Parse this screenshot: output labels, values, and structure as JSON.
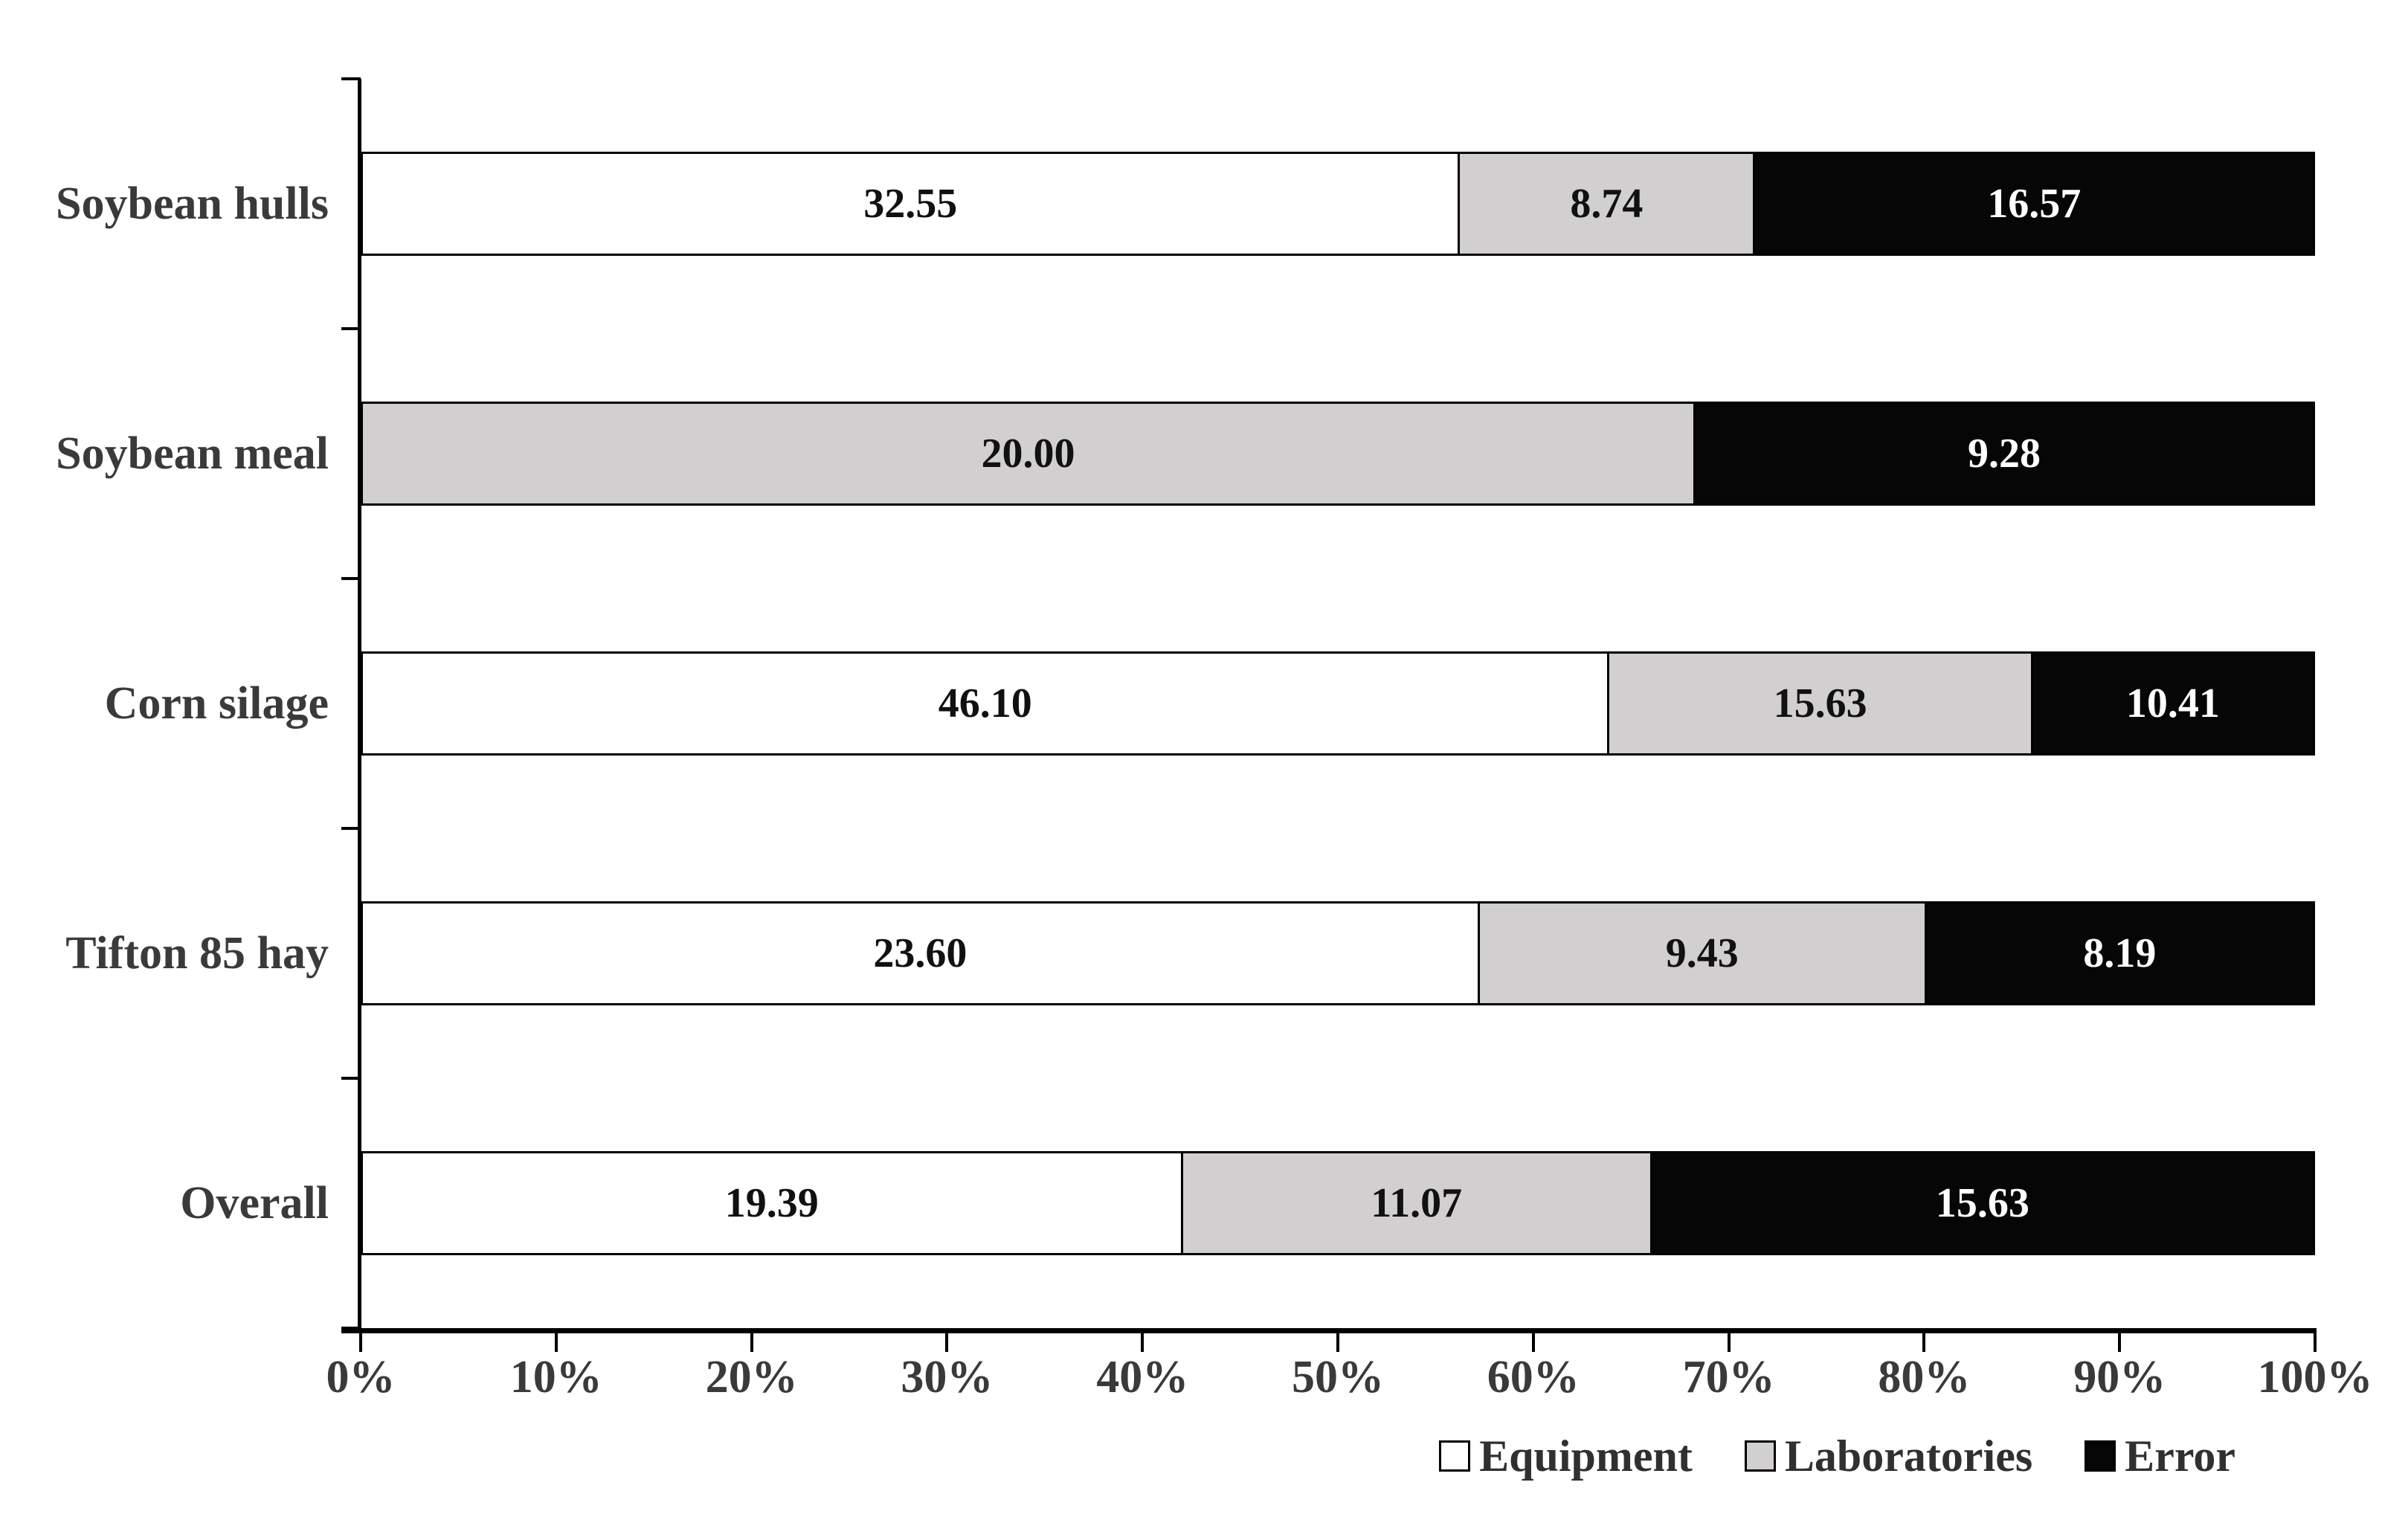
{
  "chart_data": {
    "type": "bar",
    "orientation": "horizontal",
    "stacked": "100%",
    "grid": false,
    "legend_position": "bottom-right",
    "categories": [
      "Soybean hulls",
      "Soybean meal",
      "Corn silage",
      "Tifton 85 hay",
      "Overall"
    ],
    "series": [
      {
        "name": "Equipment",
        "color": "#ffffff",
        "label_color": "#111111",
        "values": [
          32.55,
          0,
          46.1,
          23.6,
          19.39
        ],
        "labels": [
          "32.55",
          "",
          "46.10",
          "23.60",
          "19.39"
        ]
      },
      {
        "name": "Laboratories",
        "color": "#d2cfd0",
        "label_color": "#111111",
        "values": [
          8.74,
          20.0,
          15.63,
          9.43,
          11.07
        ],
        "labels": [
          "8.74",
          "20.00",
          "15.63",
          "9.43",
          "11.07"
        ]
      },
      {
        "name": "Error",
        "color": "#060606",
        "label_color": "#ffffff",
        "values": [
          16.57,
          9.28,
          10.41,
          8.19,
          15.63
        ],
        "labels": [
          "16.57",
          "9.28",
          "10.41",
          "8.19",
          "15.63"
        ]
      }
    ],
    "x_tick_labels": [
      "0%",
      "10%",
      "20%",
      "30%",
      "40%",
      "50%",
      "60%",
      "70%",
      "80%",
      "90%",
      "100%"
    ],
    "xlim_percent": [
      0,
      100
    ],
    "note": "data labels show raw values; segment widths are percent of row total"
  },
  "colors": {
    "axis": "#000000",
    "tick_label": "#3a3a3a",
    "category_label": "#3a3a3a",
    "legend_text": "#303030"
  }
}
